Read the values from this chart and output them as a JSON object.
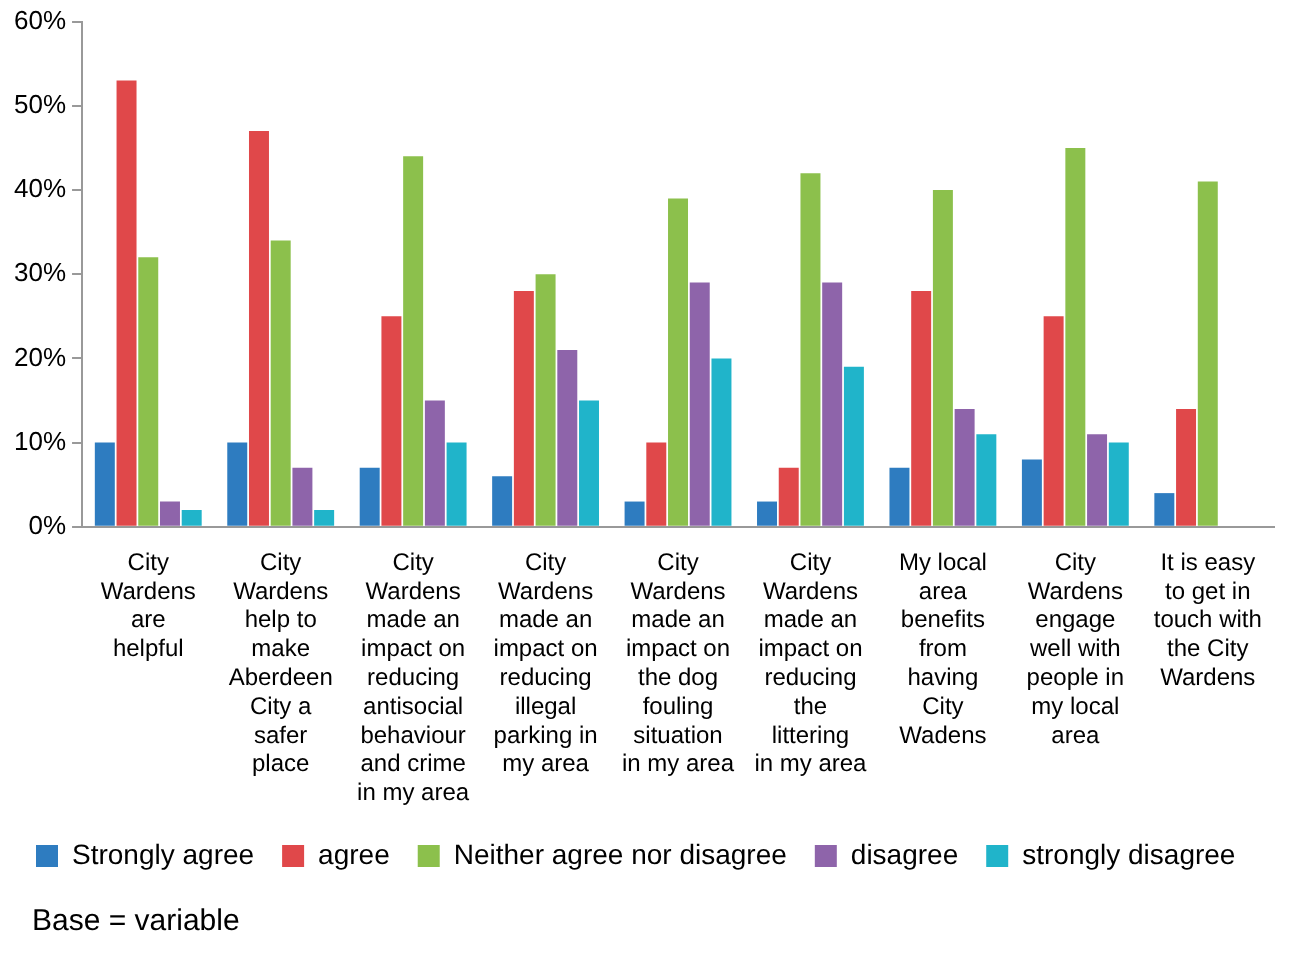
{
  "chart_data": {
    "type": "bar",
    "categories": [
      "City Wardens are helpful",
      "City Wardens help to make Aberdeen City a safer place",
      "City Wardens made an impact on reducing antisocial behaviour and crime in my area",
      "City Wardens made an impact on reducing illegal parking in my area",
      "City Wardens made an impact on the dog fouling situation in my area",
      "City Wardens made an impact on reducing the littering in my area",
      "My local area benefits from having City Wadens",
      "City Wardens engage well with people in my local area",
      "It is easy to get in touch with the City Wardens"
    ],
    "series": [
      {
        "name": "Strongly agree",
        "color": "#2e7cc0",
        "values": [
          10,
          10,
          7,
          6,
          3,
          3,
          7,
          8,
          4
        ]
      },
      {
        "name": "agree",
        "color": "#e0484a",
        "values": [
          53,
          47,
          25,
          28,
          10,
          7,
          28,
          25,
          14
        ]
      },
      {
        "name": "Neither agree nor disagree",
        "color": "#8cc04c",
        "values": [
          32,
          34,
          44,
          30,
          39,
          42,
          40,
          45,
          41
        ]
      },
      {
        "name": "disagree",
        "color": "#8e64aa",
        "values": [
          3,
          7,
          15,
          21,
          29,
          29,
          14,
          11,
          null
        ]
      },
      {
        "name": "strongly disagree",
        "color": "#20b4ca",
        "values": [
          2,
          2,
          10,
          15,
          20,
          19,
          11,
          10,
          null
        ]
      }
    ],
    "ylim": [
      0,
      60
    ],
    "yticks": [
      {
        "value": 0,
        "label": "0%"
      },
      {
        "value": 10,
        "label": "10%"
      },
      {
        "value": 20,
        "label": "20%"
      },
      {
        "value": 30,
        "label": "30%"
      },
      {
        "value": 40,
        "label": "40%"
      },
      {
        "value": 50,
        "label": "50%"
      },
      {
        "value": 60,
        "label": "60%"
      }
    ],
    "grid": false,
    "legend": "bottom",
    "annotations": [
      "Base = variable"
    ]
  }
}
